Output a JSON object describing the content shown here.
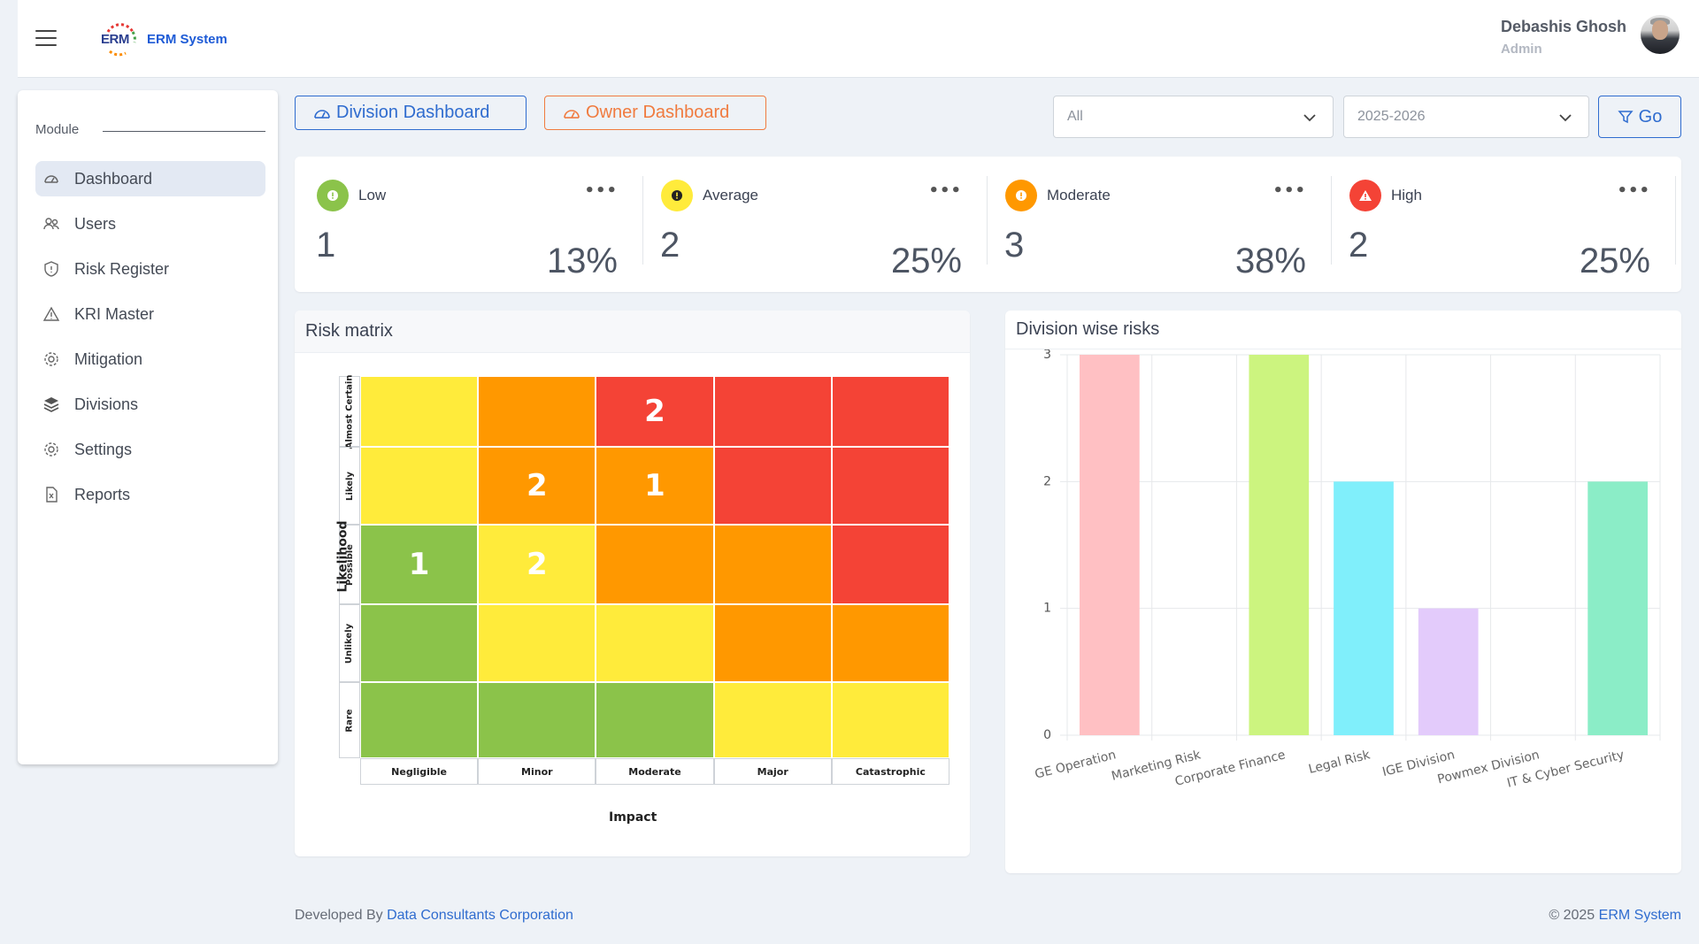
{
  "header": {
    "logo_text": "ERM",
    "app_name": "ERM System",
    "user_name": "Debashis Ghosh",
    "user_role": "Admin"
  },
  "sidebar": {
    "module_label": "Module",
    "items": [
      {
        "label": "Dashboard",
        "icon": "gauge-icon",
        "active": true
      },
      {
        "label": "Users",
        "icon": "users-icon"
      },
      {
        "label": "Risk Register",
        "icon": "shield-icon"
      },
      {
        "label": "KRI Master",
        "icon": "warning-icon"
      },
      {
        "label": "Mitigation",
        "icon": "gear-icon"
      },
      {
        "label": "Divisions",
        "icon": "layers-icon"
      },
      {
        "label": "Settings",
        "icon": "settings-icon"
      },
      {
        "label": "Reports",
        "icon": "file-icon"
      }
    ]
  },
  "toolbar": {
    "division_tab": "Division Dashboard",
    "owner_tab": "Owner Dashboard",
    "filter_value": "All",
    "year_value": "2025-2026",
    "go_label": "Go"
  },
  "kpis": [
    {
      "title": "Low",
      "count": "1",
      "percent": "13%",
      "color": "#8bc34a",
      "icon_color": "#ffffff",
      "glyph": "!"
    },
    {
      "title": "Average",
      "count": "2",
      "percent": "25%",
      "color": "#ffeb3b",
      "icon_color": "#222222",
      "glyph": "!"
    },
    {
      "title": "Moderate",
      "count": "3",
      "percent": "38%",
      "color": "#ff9800",
      "icon_color": "#ffffff",
      "glyph": "!"
    },
    {
      "title": "High",
      "count": "2",
      "percent": "25%",
      "color": "#f44336",
      "icon_color": "#ffffff",
      "glyph": "▲"
    }
  ],
  "risk_matrix": {
    "title": "Risk matrix",
    "y_axis_label": "Likelihood",
    "x_axis_label": "Impact",
    "rows": [
      "Almost Certain",
      "Likely",
      "Possible",
      "Unlikely",
      "Rare"
    ],
    "cols": [
      "Negligible",
      "Minor",
      "Moderate",
      "Major",
      "Catastrophic"
    ],
    "colors": {
      "green": "#8bc34a",
      "yellow": "#ffeb3b",
      "orange": "#ff9800",
      "red": "#f44336"
    },
    "cells": [
      [
        "yellow",
        "orange",
        "red",
        "red",
        "red"
      ],
      [
        "yellow",
        "orange",
        "orange",
        "red",
        "red"
      ],
      [
        "green",
        "yellow",
        "orange",
        "orange",
        "red"
      ],
      [
        "green",
        "yellow",
        "yellow",
        "orange",
        "orange"
      ],
      [
        "green",
        "green",
        "green",
        "yellow",
        "yellow"
      ]
    ],
    "values": [
      [
        "",
        "",
        "2",
        "",
        ""
      ],
      [
        "",
        "2",
        "1",
        "",
        ""
      ],
      [
        "1",
        "2",
        "",
        "",
        ""
      ],
      [
        "",
        "",
        "",
        "",
        ""
      ],
      [
        "",
        "",
        "",
        "",
        ""
      ]
    ]
  },
  "chart_data": {
    "type": "bar",
    "title": "Division wise risks",
    "categories": [
      "GE Operation",
      "Marketing Risk",
      "Corporate Finance",
      "Legal Risk",
      "IGE Division",
      "Powmex Division",
      "IT & Cyber Security"
    ],
    "values": [
      3,
      0,
      3,
      2,
      1,
      0,
      2
    ],
    "colors": [
      "#ffc0c3",
      "#ffe0b2",
      "#ccf47f",
      "#80effb",
      "#e3cbfb",
      "#d0d0d0",
      "#8bedc7"
    ],
    "ylim": [
      0,
      3
    ],
    "yticks": [
      "0",
      "1",
      "2",
      "3"
    ],
    "grid": true
  },
  "footer": {
    "developed_by": "Developed By",
    "company": "Data Consultants Corporation",
    "copyright_symbol": "© 2025",
    "copyright_name": "ERM System"
  }
}
